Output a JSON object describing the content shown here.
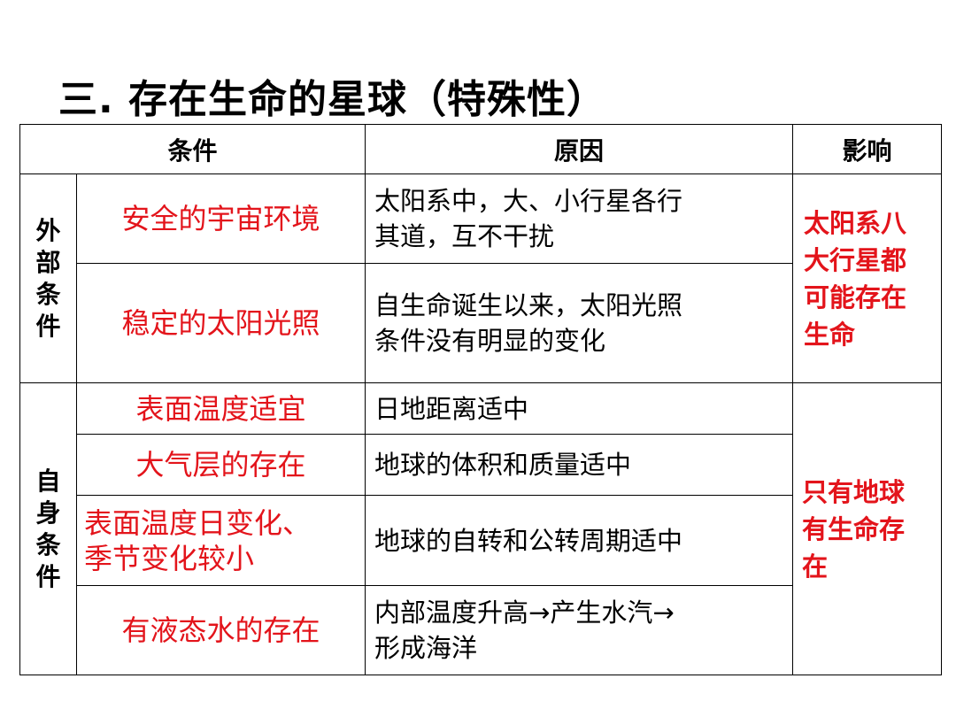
{
  "title": "三. 存在生命的星球（特殊性）",
  "table": {
    "headers": [
      "条件",
      "原因",
      "影响"
    ],
    "groups": [
      {
        "label": "外\n部\n条\n件",
        "impact": "太阳系八\n大行星都\n可能存在\n生命",
        "rows": [
          {
            "condition": "安全的宇宙环境",
            "reason": "太阳系中，大、小行星各行\n其道，互不干扰"
          },
          {
            "condition": "稳定的太阳光照",
            "reason": "自生命诞生以来，太阳光照\n条件没有明显的变化"
          }
        ]
      },
      {
        "label": "自\n身\n条\n件",
        "impact": "只有地球\n有生命存\n在",
        "rows": [
          {
            "condition": "表面温度适宜",
            "reason": "日地距离适中"
          },
          {
            "condition": "大气层的存在",
            "reason": "地球的体积和质量适中"
          },
          {
            "condition": "表面温度日变化、\n季节变化较小",
            "reason": "地球的自转和公转周期适中"
          },
          {
            "condition": "有液态水的存在",
            "reason": "内部温度升高→产生水汽→\n形成海洋"
          }
        ]
      }
    ]
  },
  "colors": {
    "accent_red": "#e3141b",
    "text": "#000000"
  }
}
